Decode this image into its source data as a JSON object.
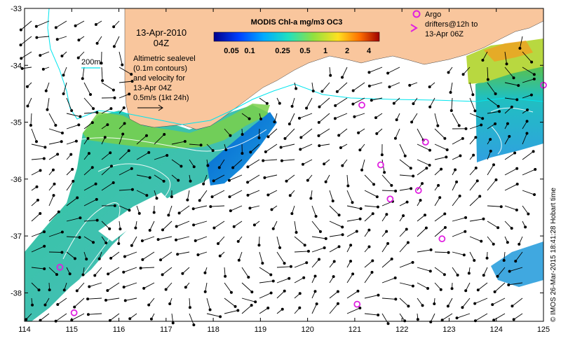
{
  "map": {
    "date": "13-Apr-2010",
    "time": "04Z",
    "contour_legend_label": "200m",
    "description_lines": [
      "Altimetric sealevel",
      "(0.1m contours)",
      "and velocity for",
      "13-Apr 04Z",
      "0.5m/s (1kt 24h)"
    ],
    "colorbar_title": "MODIS Chl-a mg/m3 OC3",
    "colorbar_ticks": [
      "0.05",
      "0.1",
      "0.25",
      "0.5",
      "1",
      "2",
      "4"
    ],
    "argo_lines": [
      "Argo",
      "drifters@12h to",
      "13-Apr 06Z"
    ],
    "credit": "© IMOS 26-Mar-2015 18:41:28 Hobart time",
    "colors": {
      "land": "#f9c69d",
      "contour": "#00e5ee",
      "argo": "#e020e0"
    }
  },
  "axes": {
    "x_ticks": [
      "114",
      "115",
      "116",
      "117",
      "118",
      "119",
      "120",
      "121",
      "122",
      "123",
      "124",
      "125"
    ],
    "y_ticks": [
      "-33",
      "-34",
      "-35",
      "-36",
      "-37",
      "-38"
    ],
    "xlim": [
      114,
      125
    ],
    "ylim": [
      -38.5,
      -33
    ]
  },
  "drifters": [
    [
      121.15,
      -34.7
    ],
    [
      122.5,
      -35.35
    ],
    [
      121.55,
      -35.75
    ],
    [
      122.35,
      -36.2
    ],
    [
      121.75,
      -36.35
    ],
    [
      122.85,
      -37.05
    ],
    [
      121.05,
      -38.2
    ],
    [
      114.75,
      -37.55
    ],
    [
      115.05,
      -38.35
    ],
    [
      125.0,
      -34.35
    ]
  ]
}
